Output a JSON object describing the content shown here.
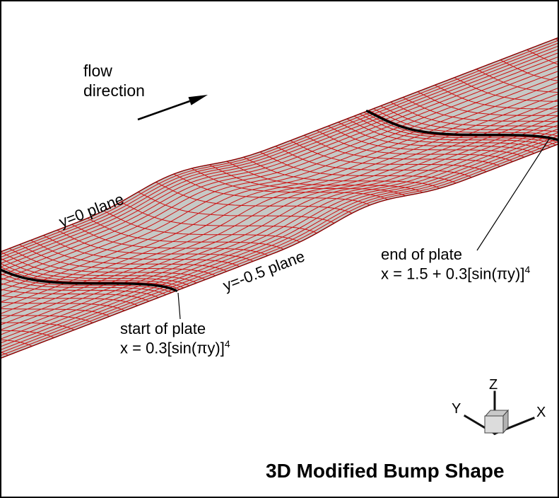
{
  "labels": {
    "flow_line1": "flow",
    "flow_line2": "direction",
    "plane_y0": "y=0 plane",
    "plane_ym05": "y=-0.5 plane",
    "start_title": "start of plate",
    "start_formula_main": "x = 0.3[sin(πy)]",
    "start_formula_sup": "4",
    "end_title": "end of plate",
    "end_formula_main": "x = 1.5 + 0.3[sin(πy)]",
    "end_formula_sup": "4",
    "title": "3D Modified Bump Shape",
    "axis_x": "X",
    "axis_y": "Y",
    "axis_z": "Z"
  },
  "colors": {
    "background": "#ffffff",
    "border": "#000000",
    "mesh_line": "#cc1111",
    "surface_fill": "#c6c9c6",
    "band_edge": "#8b0000",
    "plate_edge_line": "#000000",
    "leader_line": "#000000",
    "arrow": "#000000",
    "triad_line": "#111111",
    "cube_front": "#dcdcdc",
    "cube_top": "#c9c9c9",
    "cube_right": "#b2b2b2",
    "cube_stroke": "#444444"
  },
  "geometry_notes": {
    "plate_start_curve": "x = 0.3[sin(πy)]^4",
    "plate_end_curve": "x = 1.5 + 0.3[sin(πy)]^4",
    "span_shown": "y = 0 plane to y = -0.5 plane"
  }
}
